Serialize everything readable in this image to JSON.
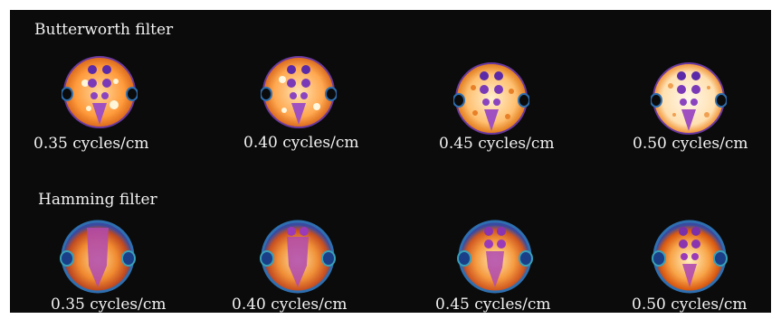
{
  "rows": [
    {
      "title": "Butterworth filter",
      "captions": [
        "0.35 cycles/cm",
        "0.40 cycles/cm",
        "0.45 cycles/cm",
        "0.50 cycles/cm"
      ]
    },
    {
      "title": "Hamming filter",
      "captions": [
        "0.35 cycles/cm",
        "0.40 cycles/cm",
        "0.45 cycles/cm",
        "0.50 cycles/cm"
      ]
    }
  ],
  "colors": {
    "background": "#0b0b0b",
    "text": "#f2f2f2",
    "butterworth_bg": "#fff0d0",
    "butterworth_spot": "#e07818",
    "hamming_core": "#ffd890",
    "hamming_outer": "#d85810",
    "rim_blue": "#2e6fb0",
    "rod_purple": "#5a2aa8",
    "cold_region_blue": "#1a3f88"
  }
}
